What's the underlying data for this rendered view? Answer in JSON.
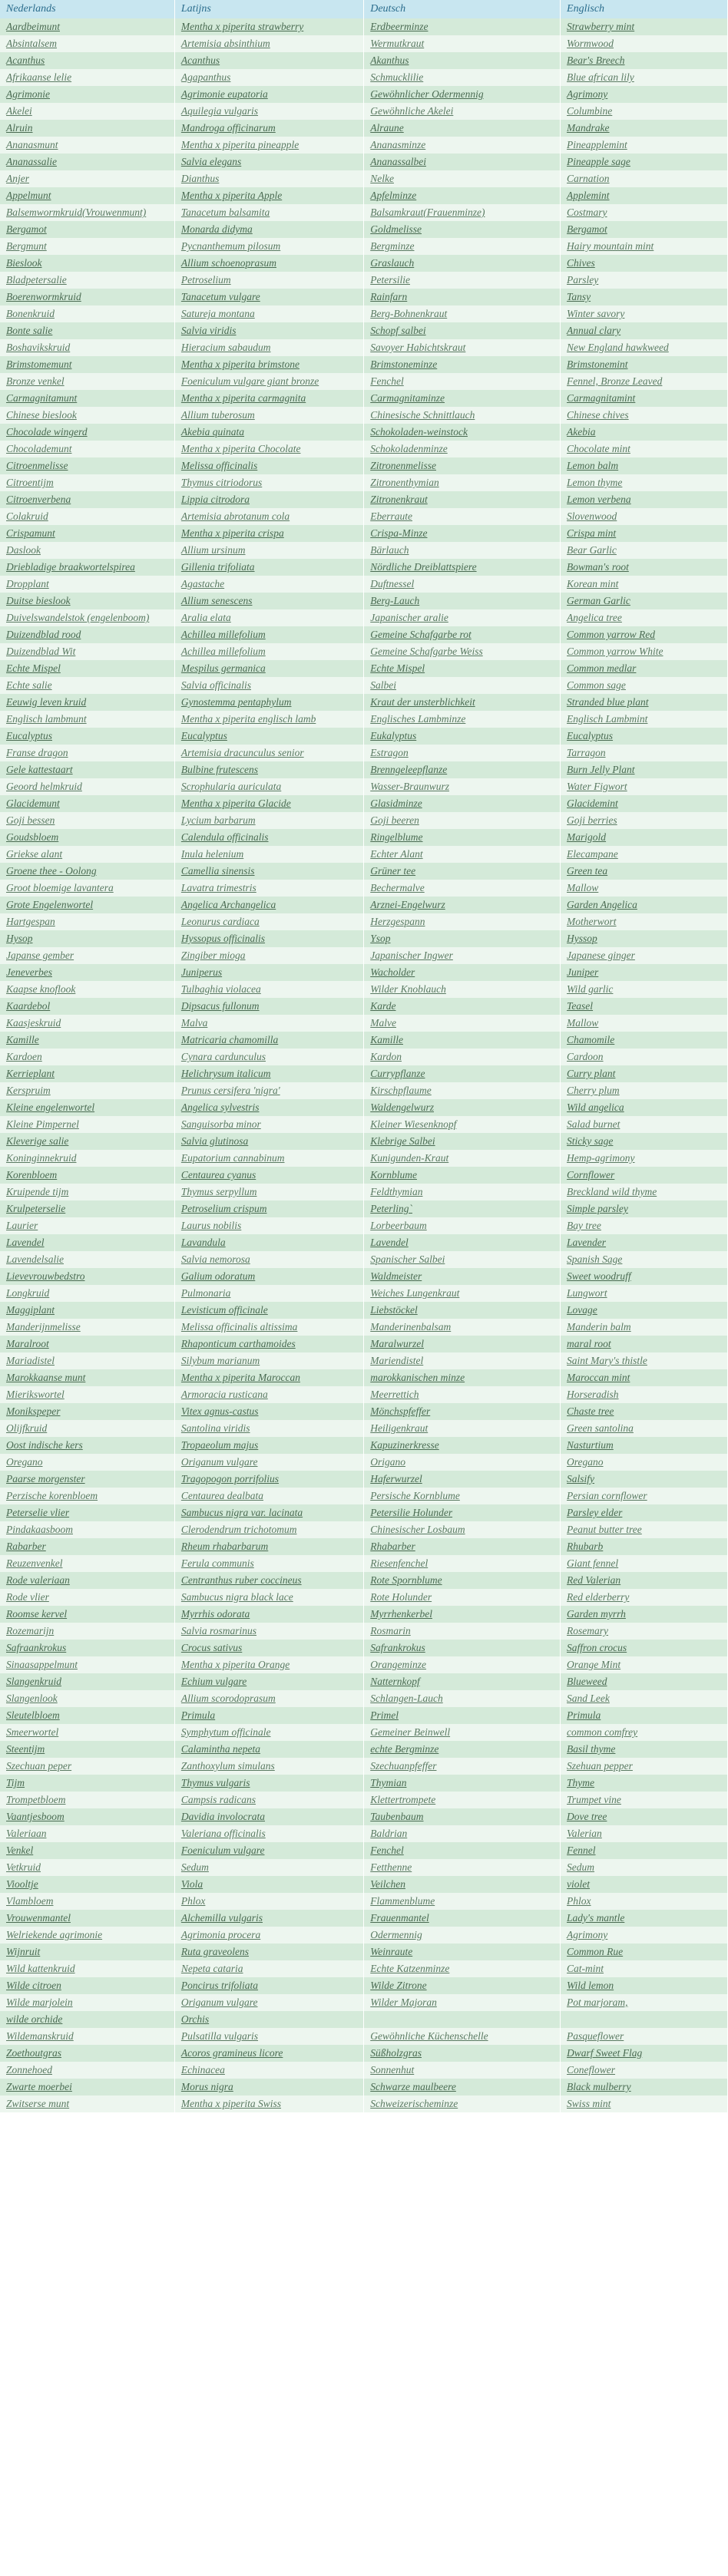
{
  "headers": [
    "Nederlands",
    "Latijns",
    "Deutsch",
    "Englisch"
  ],
  "rows": [
    {
      "nl": "Aardbeimunt",
      "la": "Mentha x piperita strawberry",
      "de": "Erdbeerminze",
      "en": "Strawberry mint"
    },
    {
      "nl": "Absintalsem",
      "la": "Artemisia absinthium",
      "de": "Wermutkraut",
      "en": "Wormwood"
    },
    {
      "nl": "Acanthus",
      "la": "Acanthus",
      "de": "Akanthus",
      "en": "Bear's Breech"
    },
    {
      "nl": "Afrikaanse lelie",
      "la": "Agapanthus",
      "de": "Schmucklilie",
      "en": "Blue african lily"
    },
    {
      "nl": "Agrimonie",
      "la": "Agrimonie eupatoria",
      "de": "Gewöhnlicher Odermennig",
      "en": "Agrimony"
    },
    {
      "nl": "Akelei",
      "la": "Aquilegia vulgaris",
      "de": "Gewöhnliche Akelei",
      "en": "Columbine"
    },
    {
      "nl": "Alruin",
      "la": "Mandroga officinarum",
      "de": "Alraune",
      "en": "Mandrake"
    },
    {
      "nl": "Ananasmunt",
      "la": "Mentha x piperita pineapple",
      "de": "Ananasminze",
      "en": "Pineapplemint"
    },
    {
      "nl": "Ananassalie",
      "la": "Salvia elegans",
      "de": "Ananassalbei",
      "en": "Pineapple sage"
    },
    {
      "nl": "Anjer",
      "la": "Dianthus",
      "de": "Nelke",
      "en": "Carnation"
    },
    {
      "nl": "Appelmunt",
      "la": "Mentha x piperita Apple",
      "de": "Apfelminze",
      "en": "Applemint"
    },
    {
      "nl": "Balsemwormkruid(Vrouwenmunt)",
      "la": "Tanacetum balsamita",
      "de": "Balsamkraut(Frauenminze)",
      "en": "Costmary"
    },
    {
      "nl": "Bergamot",
      "la": "Monarda didyma",
      "de": "Goldmelisse",
      "en": "Bergamot"
    },
    {
      "nl": "Bergmunt",
      "la": "Pycnanthemum pilosum",
      "de": "Bergminze",
      "en": "Hairy mountain mint"
    },
    {
      "nl": "Bieslook",
      "la": "Allium schoenoprasum",
      "de": "Graslauch",
      "en": "Chives"
    },
    {
      "nl": "Bladpetersalie",
      "la": "Petroselium",
      "de": "Petersilie",
      "en": "Parsley"
    },
    {
      "nl": "Boerenwormkruid",
      "la": "Tanacetum vulgare",
      "de": "Rainfarn",
      "en": "Tansy"
    },
    {
      "nl": "Bonenkruid",
      "la": "Satureja montana",
      "de": "Berg-Bohnenkraut",
      "en": "Winter savory"
    },
    {
      "nl": "Bonte salie",
      "la": "Salvia viridis",
      "de": "Schopf salbei",
      "en": "Annual clary"
    },
    {
      "nl": "Boshavikskruid",
      "la": "Hieracium sabaudum",
      "de": "Savoyer Habichtskraut",
      "en": "New England hawkweed"
    },
    {
      "nl": "Brimstomemunt",
      "la": "Mentha x piperita brimstone",
      "de": "Brimstoneminze",
      "en": "Brimstonemint"
    },
    {
      "nl": "Bronze venkel",
      "la": "Foeniculum vulgare giant bronze",
      "de": "Fenchel",
      "en": "Fennel, Bronze Leaved"
    },
    {
      "nl": "Carmagnitamunt",
      "la": "Mentha x piperita carmagnita",
      "de": "Carmagnitaminze",
      "en": "Carmagnitamint"
    },
    {
      "nl": "Chinese bieslook",
      "la": "Allium tuberosum",
      "de": "Chinesische Schnittlauch",
      "en": "Chinese chives"
    },
    {
      "nl": "Chocolade wingerd",
      "la": "Akebia quinata",
      "de": "Schokoladen-weinstock",
      "en": "Akebia"
    },
    {
      "nl": "Chocolademunt",
      "la": "Mentha x piperita Chocolate",
      "de": "Schokoladenminze",
      "en": "Chocolate mint"
    },
    {
      "nl": "Citroenmelisse",
      "la": "Melissa officinalis",
      "de": "Zitronenmelisse",
      "en": "Lemon balm"
    },
    {
      "nl": "Citroentijm",
      "la": "Thymus citriodorus",
      "de": "Zitronenthymian",
      "en": "Lemon thyme"
    },
    {
      "nl": "Citroenverbena",
      "la": "Lippia citrodora",
      "de": "Zitronenkraut",
      "en": "Lemon verbena"
    },
    {
      "nl": "Colakruid",
      "la": "Artemisia abrotanum cola",
      "de": "Eberraute",
      "en": "Slovenwood"
    },
    {
      "nl": "Crispamunt",
      "la": "Mentha x piperita crispa",
      "de": "Crispa-Minze",
      "en": "Crispa mint"
    },
    {
      "nl": "Daslook",
      "la": "Allium ursinum",
      "de": "Bärlauch",
      "en": "Bear Garlic"
    },
    {
      "nl": "Driebladige braakwortelspirea",
      "la": "Gillenia trifoliata",
      "de": "Nördliche Dreiblattspiere",
      "en": "Bowman's root"
    },
    {
      "nl": "Dropplant",
      "la": "Agastache",
      "de": "Duftnessel",
      "en": "Korean mint"
    },
    {
      "nl": "Duitse bieslook",
      "la": "Allium senescens",
      "de": "Berg-Lauch",
      "en": "German Garlic"
    },
    {
      "nl": "Duivelswandelstok (engelenboom)",
      "la": "Aralia elata",
      "de": "Japanischer aralie",
      "en": "Angelica tree"
    },
    {
      "nl": "Duizendblad rood",
      "la": "Achillea millefolium",
      "de": "Gemeine Schafgarbe rot",
      "en": "Common yarrow Red"
    },
    {
      "nl": "Duizendblad Wit",
      "la": "Achillea millefolium",
      "de": "Gemeine Schafgarbe Weiss",
      "en": "Common yarrow White"
    },
    {
      "nl": "Echte Mispel",
      "la": "Mespilus germanica",
      "de": "Echte Mispel",
      "en": "Common medlar"
    },
    {
      "nl": "Echte salie",
      "la": "Salvia officinalis",
      "de": "Salbei",
      "en": "Common sage"
    },
    {
      "nl": "Eeuwig leven kruid",
      "la": "Gynostemma pentaphylum",
      "de": "Kraut der unsterblichkeit",
      "en": "Stranded blue plant"
    },
    {
      "nl": "Englisch lambmunt",
      "la": "Mentha x piperita englisch lamb",
      "de": "Englisches Lambminze",
      "en": "Englisch Lambmint"
    },
    {
      "nl": "Eucalyptus",
      "la": "Eucalyptus",
      "de": "Eukalyptus",
      "en": "Eucalyptus"
    },
    {
      "nl": "Franse dragon",
      "la": "Artemisia dracunculus senior",
      "de": "Estragon",
      "en": "Tarragon"
    },
    {
      "nl": "Gele kattestaart",
      "la": "Bulbine frutescens",
      "de": "Brenngeleepflanze",
      "en": "Burn Jelly Plant"
    },
    {
      "nl": "Geoord helmkruid",
      "la": "Scrophularia auriculata",
      "de": "Wasser-Braunwurz",
      "en": "Water Figwort"
    },
    {
      "nl": "Glacidemunt",
      "la": "Mentha x piperita Glacide",
      "de": "Glasidminze",
      "en": "Glacidemint"
    },
    {
      "nl": "Goji bessen",
      "la": "Lycium barbarum",
      "de": "Goji beeren",
      "en": "Goji berries"
    },
    {
      "nl": "Goudsbloem",
      "la": "Calendula officinalis",
      "de": "Ringelblume",
      "en": "Marigold"
    },
    {
      "nl": "Griekse alant",
      "la": "Inula helenium",
      "de": "Echter Alant",
      "en": "Elecampane"
    },
    {
      "nl": "Groene thee - Oolong",
      "la": "Camellia sinensis",
      "de": "Grüner tee",
      "en": "Green tea"
    },
    {
      "nl": "Groot bloemige lavantera",
      "la": "Lavatra trimestris",
      "de": "Bechermalve",
      "en": "Mallow"
    },
    {
      "nl": "Grote Engelenwortel",
      "la": "Angelica Archangelica",
      "de": "Arznei-Engelwurz",
      "en": "Garden Angelica"
    },
    {
      "nl": "Hartgespan",
      "la": "Leonurus cardiaca",
      "de": "Herzgespann",
      "en": "Motherwort"
    },
    {
      "nl": "Hysop",
      "la": "Hyssopus officinalis",
      "de": "Ysop",
      "en": "Hyssop"
    },
    {
      "nl": "Japanse gember",
      "la": "Zingiber mioga",
      "de": "Japanischer Ingwer",
      "en": "Japanese ginger"
    },
    {
      "nl": "Jeneverbes",
      "la": "Juniperus",
      "de": "Wacholder",
      "en": "Juniper"
    },
    {
      "nl": "Kaapse knoflook",
      "la": "Tulbaghia violacea",
      "de": "Wilder Knoblauch",
      "en": "Wild garlic"
    },
    {
      "nl": "Kaardebol",
      "la": "Dipsacus fullonum",
      "de": "Karde",
      "en": "Teasel"
    },
    {
      "nl": "Kaasjeskruid",
      "la": "Malva",
      "de": "Malve",
      "en": "Mallow"
    },
    {
      "nl": "Kamille",
      "la": "Matricaria chamomilla",
      "de": "Kamille",
      "en": "Chamomile"
    },
    {
      "nl": "Kardoen",
      "la": "Cynara cardunculus",
      "de": "Kardon",
      "en": "Cardoon"
    },
    {
      "nl": "Kerrieplant",
      "la": "Helichrysum italicum",
      "de": "Currypflanze",
      "en": "Curry plant"
    },
    {
      "nl": "Kerspruim",
      "la": "Prunus cersifera 'nigra'",
      "de": "Kirschpflaume",
      "en": "Cherry plum"
    },
    {
      "nl": "Kleine engelenwortel",
      "la": "Angelica sylvestris",
      "de": "Waldengelwurz",
      "en": "Wild angelica"
    },
    {
      "nl": "Kleine Pimpernel",
      "la": "Sanguisorba minor",
      "de": "Kleiner Wiesenknopf",
      "en": "Salad burnet"
    },
    {
      "nl": "Kleverige salie",
      "la": "Salvia glutinosa",
      "de": "Klebrige Salbei",
      "en": "Sticky sage"
    },
    {
      "nl": "Koninginnekruid",
      "la": "Eupatorium cannabinum",
      "de": "Kunigunden-Kraut",
      "en": "Hemp-agrimony"
    },
    {
      "nl": "Korenbloem",
      "la": "Centaurea cyanus",
      "de": "Kornblume",
      "en": "Cornflower"
    },
    {
      "nl": "Kruipende tijm",
      "la": "Thymus serpyllum",
      "de": "Feldthymian",
      "en": "Breckland wild thyme"
    },
    {
      "nl": "Krulpeterselie",
      "la": "Petroselium crispum",
      "de": "Peterling`",
      "en": "Simple parsley"
    },
    {
      "nl": "Laurier",
      "la": "Laurus nobilis",
      "de": "Lorbeerbaum",
      "en": "Bay tree"
    },
    {
      "nl": "Lavendel",
      "la": "Lavandula",
      "de": "Lavendel",
      "en": "Lavender"
    },
    {
      "nl": "Lavendelsalie",
      "la": "Salvia nemorosa",
      "de": "Spanischer Salbei",
      "en": "Spanish Sage"
    },
    {
      "nl": "Lievevrouwbedstro",
      "la": "Galium odoratum",
      "de": "Waldmeister",
      "en": "Sweet woodruff"
    },
    {
      "nl": "Longkruid",
      "la": "Pulmonaria",
      "de": "Weiches Lungenkraut",
      "en": "Lungwort"
    },
    {
      "nl": "Maggiplant",
      "la": "Levisticum officinale",
      "de": "Liebstöckel",
      "en": "Lovage"
    },
    {
      "nl": "Manderijnmelisse",
      "la": "Melissa officinalis altissima",
      "de": "Manderinenbalsam",
      "en": "Manderin balm"
    },
    {
      "nl": "Maralroot",
      "la": "Rhaponticum carthamoides",
      "de": "Maralwurzel",
      "en": "maral root"
    },
    {
      "nl": "Mariadistel",
      "la": "Silybum marianum",
      "de": "Mariendistel",
      "en": "Saint Mary's thistle"
    },
    {
      "nl": "Marokkaanse munt",
      "la": "Mentha x piperita Maroccan",
      "de": "marokkanischen minze",
      "en": "Maroccan mint"
    },
    {
      "nl": "Mierikswortel",
      "la": "Armoracia rusticana",
      "de": "Meerrettich",
      "en": "Horseradish"
    },
    {
      "nl": "Monikspeper",
      "la": "Vitex agnus-castus",
      "de": "Mönchspfeffer",
      "en": "Chaste tree"
    },
    {
      "nl": "Olijfkruid",
      "la": "Santolina viridis",
      "de": "Heiligenkraut",
      "en": "Green santolina"
    },
    {
      "nl": "Oost indische kers",
      "la": "Tropaeolum majus",
      "de": "Kapuzinerkresse",
      "en": "Nasturtium"
    },
    {
      "nl": "Oregano",
      "la": "Origanum vulgare",
      "de": "Origano",
      "en": "Oregano"
    },
    {
      "nl": "Paarse morgenster",
      "la": "Tragopogon porrifolius",
      "de": "Haferwurzel",
      "en": "Salsify"
    },
    {
      "nl": "Perzische korenbloem",
      "la": "Centaurea dealbata",
      "de": "Persische Kornblume",
      "en": "Persian cornflower"
    },
    {
      "nl": "Peterselie vlier",
      "la": "Sambucus nigra var. lacinata",
      "de": "Petersilie Holunder",
      "en": "Parsley elder"
    },
    {
      "nl": "Pindakaasboom",
      "la": "Clerodendrum trichotomum",
      "de": "Chinesischer Losbaum",
      "en": "Peanut butter tree"
    },
    {
      "nl": "Rabarber",
      "la": "Rheum rhabarbarum",
      "de": "Rhabarber",
      "en": "Rhubarb"
    },
    {
      "nl": "Reuzenvenkel",
      "la": "Ferula communis",
      "de": "Riesenfenchel",
      "en": "Giant fennel"
    },
    {
      "nl": "Rode valeriaan",
      "la": "Centranthus ruber coccineus",
      "de": "Rote Spornblume",
      "en": "Red Valerian"
    },
    {
      "nl": "Rode vlier",
      "la": "Sambucus nigra black lace",
      "de": "Rote Holunder",
      "en": "Red elderberry"
    },
    {
      "nl": "Roomse kervel",
      "la": "Myrrhis odorata",
      "de": "Myrrhenkerbel",
      "en": "Garden myrrh"
    },
    {
      "nl": "Rozemarijn",
      "la": "Salvia rosmarinus",
      "de": "Rosmarin",
      "en": "Rosemary"
    },
    {
      "nl": "Safraankrokus",
      "la": "Crocus sativus",
      "de": "Safrankrokus",
      "en": "Saffron crocus"
    },
    {
      "nl": "Sinaasappelmunt",
      "la": "Mentha x piperita Orange",
      "de": "Orangeminze",
      "en": "Orange Mint"
    },
    {
      "nl": "Slangenkruid",
      "la": "Echium vulgare",
      "de": "Natternkopf",
      "en": "Blueweed"
    },
    {
      "nl": "Slangenlook",
      "la": "Allium scorodoprasum",
      "de": "Schlangen-Lauch",
      "en": "Sand Leek"
    },
    {
      "nl": "Sleutelbloem",
      "la": "Primula",
      "de": "Primel",
      "en": "Primula"
    },
    {
      "nl": "Smeerwortel",
      "la": "Symphytum officinale",
      "de": "Gemeiner Beinwell",
      "en": "common comfrey"
    },
    {
      "nl": "Steentijm",
      "la": "Calamintha nepeta",
      "de": "echte Bergminze",
      "en": "Basil thyme"
    },
    {
      "nl": "Szechuan peper",
      "la": "Zanthoxylum simulans",
      "de": "Szechuanpfeffer",
      "en": "Szehuan pepper"
    },
    {
      "nl": "Tijm",
      "la": "Thymus vulgaris",
      "de": "Thymian",
      "en": "Thyme"
    },
    {
      "nl": "Trompetbloem",
      "la": "Campsis radicans",
      "de": "Klettertrompete",
      "en": "Trumpet vine"
    },
    {
      "nl": "Vaantjesboom",
      "la": "Davidia involocrata",
      "de": "Taubenbaum",
      "en": "Dove tree"
    },
    {
      "nl": "Valeriaan",
      "la": "Valeriana officinalis",
      "de": "Baldrian",
      "en": "Valerian"
    },
    {
      "nl": "Venkel",
      "la": "Foeniculum vulgare",
      "de": "Fenchel",
      "en": "Fennel"
    },
    {
      "nl": "Vetkruid",
      "la": "Sedum",
      "de": "Fetthenne",
      "en": "Sedum"
    },
    {
      "nl": "Viooltje",
      "la": "Viola",
      "de": "Veilchen",
      "en": "violet"
    },
    {
      "nl": "Vlambloem",
      "la": "Phlox",
      "de": "Flammenblume",
      "en": "Phlox"
    },
    {
      "nl": "Vrouwenmantel",
      "la": "Alchemilla vulgaris",
      "de": "Frauenmantel",
      "en": "Lady's mantle"
    },
    {
      "nl": "Welriekende agrimonie",
      "la": "Agrimonia procera",
      "de": "Odermennig",
      "en": "Agrimony",
      "faded": true
    },
    {
      "nl": "Wijnruit",
      "la": "Ruta graveolens",
      "de": "Weinraute",
      "en": "Common Rue"
    },
    {
      "nl": "Wild kattenkruid",
      "la": "Nepeta cataria",
      "de": "Echte Katzenminze",
      "en": "Cat-mint"
    },
    {
      "nl": "Wilde citroen",
      "la": "Poncirus trifoliata",
      "de": "Wilde Zitrone",
      "en": "Wild lemon"
    },
    {
      "nl": "Wilde marjolein",
      "la": "Origanum vulgare",
      "de": "Wilder Majoran",
      "en": "Pot marjoram,"
    },
    {
      "nl": "wilde orchide",
      "la": "Orchis",
      "de": "",
      "en": ""
    },
    {
      "nl": "Wildemanskruid",
      "la": "Pulsatilla vulgaris",
      "de": "Gewöhnliche Küchenschelle",
      "en": "Pasqueflower"
    },
    {
      "nl": "Zoethoutgras",
      "la": "Acoros gramineus licore",
      "de": "Süßholzgras",
      "en": "Dwarf Sweet Flag"
    },
    {
      "nl": "Zonnehoed",
      "la": "Echinacea",
      "de": "Sonnenhut",
      "en": "Coneflower"
    },
    {
      "nl": "Zwarte moerbei",
      "la": "Morus nigra",
      "de": "Schwarze maulbeere",
      "en": "Black mulberry"
    },
    {
      "nl": "Zwitserse munt",
      "la": "Mentha x piperita Swiss",
      "de": "Schweizerischeminze",
      "en": "Swiss mint"
    }
  ]
}
